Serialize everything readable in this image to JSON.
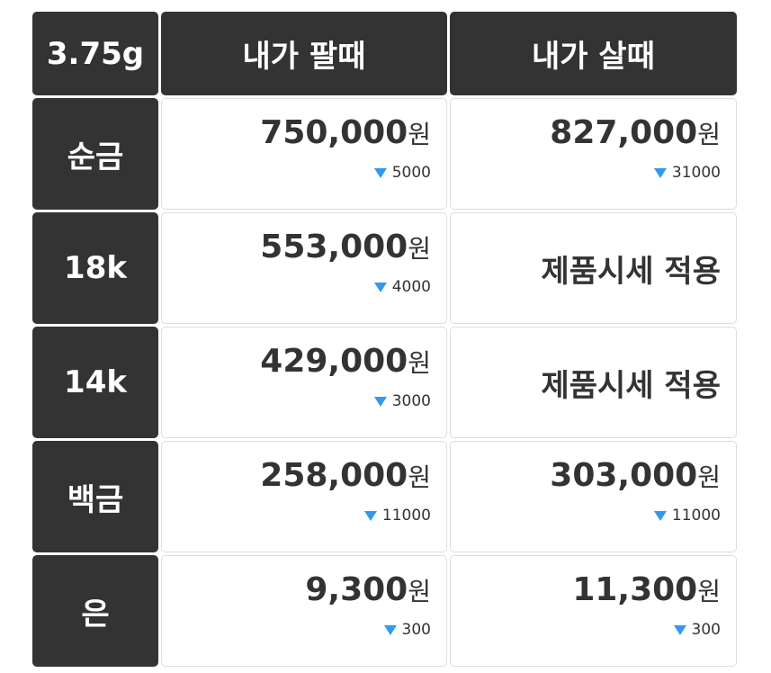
{
  "table": {
    "header": [
      "3.75g",
      "내가 팔때",
      "내가 살때"
    ],
    "rows": [
      {
        "label": "순금",
        "sell": {
          "price": "750,000",
          "unit": "원",
          "change": "5000"
        },
        "buy": {
          "price": "827,000",
          "unit": "원",
          "change": "31000"
        }
      },
      {
        "label": "18k",
        "sell": {
          "price": "553,000",
          "unit": "원",
          "change": "4000"
        },
        "buy": {
          "text": "제품시세 적용"
        }
      },
      {
        "label": "14k",
        "sell": {
          "price": "429,000",
          "unit": "원",
          "change": "3000"
        },
        "buy": {
          "text": "제품시세 적용"
        }
      },
      {
        "label": "백금",
        "sell": {
          "price": "258,000",
          "unit": "원",
          "change": "11000"
        },
        "buy": {
          "price": "303,000",
          "unit": "원",
          "change": "11000"
        }
      },
      {
        "label": "은",
        "sell": {
          "price": "9,300",
          "unit": "원",
          "change": "300"
        },
        "buy": {
          "price": "11,300",
          "unit": "원",
          "change": "300"
        }
      }
    ]
  }
}
